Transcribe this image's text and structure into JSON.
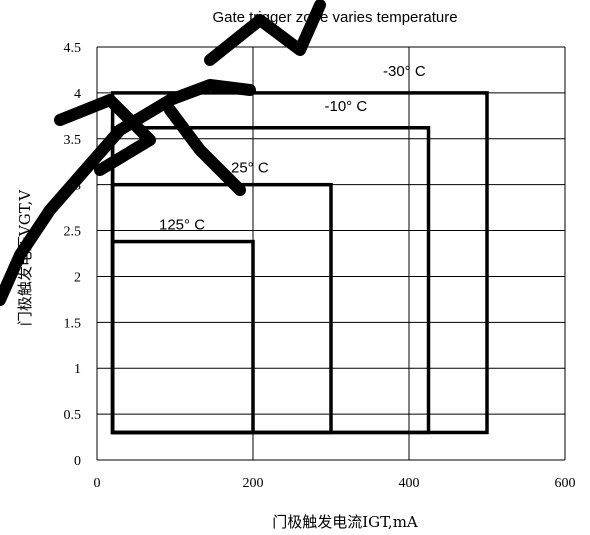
{
  "chart_data": {
    "type": "line",
    "title": "Gate trigger zone varies temperature",
    "xlabel": "门极触发电流IGT,mA",
    "ylabel": "门极触发电压VGT,V",
    "xlim": [
      0,
      600
    ],
    "ylim": [
      0,
      4.5
    ],
    "x_ticks": [
      "0",
      "200",
      "400",
      "600"
    ],
    "y_ticks": [
      "0",
      "0.5",
      "1",
      "1.5",
      "2",
      "2.5",
      "3",
      "3.5",
      "4",
      "4.5"
    ],
    "grid": true,
    "series": [
      {
        "name": "-30° C",
        "x_min": 20,
        "x_max": 500,
        "y_min": 0.3,
        "y_max": 4.0
      },
      {
        "name": "-10° C",
        "x_min": 20,
        "x_max": 425,
        "y_min": 0.3,
        "y_max": 3.62
      },
      {
        "name": "25° C",
        "x_min": 20,
        "x_max": 300,
        "y_min": 0.3,
        "y_max": 3.0
      },
      {
        "name": "125° C",
        "x_min": 20,
        "x_max": 200,
        "y_min": 0.3,
        "y_max": 2.38
      }
    ]
  }
}
